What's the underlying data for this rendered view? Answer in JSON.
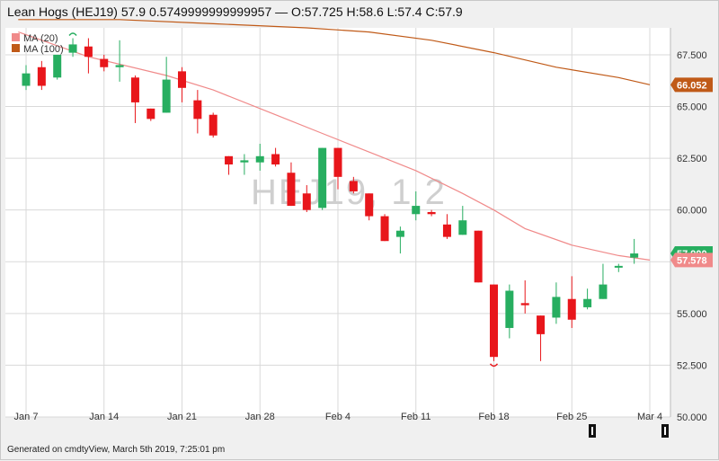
{
  "header": {
    "name": "Lean Hogs (HEJ19)",
    "last": "57.9",
    "change": "0.5749999999999957",
    "dash": "—",
    "ohlc": "O:57.725 H:58.6 L:57.4 C:57.9"
  },
  "footer": "Generated on cmdtyView, March 5th 2019, 7:25:01 pm",
  "watermark": "HEJ19, 1 2",
  "colors": {
    "up": "#27ae60",
    "down": "#e8161b",
    "ma20": "#f08a8a",
    "ma100": "#c05a18",
    "grid": "#d9d9d9",
    "plot_bg": "#ffffff"
  },
  "chart_data": {
    "type": "candlestick",
    "ylim": [
      50.0,
      68.8
    ],
    "yticks": [
      50.0,
      52.5,
      55.0,
      57.5,
      60.0,
      62.5,
      65.0,
      67.5
    ],
    "ytick_labels": [
      "50.000",
      "52.500",
      "55.000",
      "57.500",
      "60.000",
      "62.500",
      "65.000",
      "67.500"
    ],
    "xtick_labels": [
      {
        "label": "Jan 7",
        "i": 0
      },
      {
        "label": "Jan 14",
        "i": 5
      },
      {
        "label": "Jan 21",
        "i": 10
      },
      {
        "label": "Jan 28",
        "i": 15
      },
      {
        "label": "Feb 4",
        "i": 20
      },
      {
        "label": "Feb 11",
        "i": 25
      },
      {
        "label": "Feb 18",
        "i": 30
      },
      {
        "label": "Feb 25",
        "i": 35
      },
      {
        "label": "Mar 4",
        "i": 40
      }
    ],
    "candles": [
      {
        "o": 66.0,
        "h": 67.0,
        "l": 65.8,
        "c": 66.6
      },
      {
        "o": 66.9,
        "h": 67.2,
        "l": 65.8,
        "c": 66.0
      },
      {
        "o": 66.4,
        "h": 67.5,
        "l": 66.3,
        "c": 67.5
      },
      {
        "o": 67.6,
        "h": 68.3,
        "l": 67.4,
        "c": 68.0
      },
      {
        "o": 67.9,
        "h": 68.3,
        "l": 66.6,
        "c": 67.4
      },
      {
        "o": 67.3,
        "h": 67.5,
        "l": 66.7,
        "c": 66.9
      },
      {
        "o": 66.9,
        "h": 68.2,
        "l": 66.2,
        "c": 67.0
      },
      {
        "o": 66.4,
        "h": 66.5,
        "l": 64.2,
        "c": 65.2
      },
      {
        "o": 64.9,
        "h": 64.9,
        "l": 64.3,
        "c": 64.4
      },
      {
        "o": 64.7,
        "h": 67.4,
        "l": 64.7,
        "c": 66.3
      },
      {
        "o": 66.7,
        "h": 66.9,
        "l": 65.2,
        "c": 65.9
      },
      {
        "o": 65.3,
        "h": 65.8,
        "l": 63.7,
        "c": 64.4
      },
      {
        "o": 64.6,
        "h": 64.7,
        "l": 63.5,
        "c": 63.6
      },
      {
        "o": 62.6,
        "h": 62.6,
        "l": 61.7,
        "c": 62.2
      },
      {
        "o": 62.3,
        "h": 62.7,
        "l": 61.7,
        "c": 62.4
      },
      {
        "o": 62.3,
        "h": 63.2,
        "l": 61.9,
        "c": 62.6
      },
      {
        "o": 62.7,
        "h": 63.0,
        "l": 62.1,
        "c": 62.2
      },
      {
        "o": 61.8,
        "h": 62.3,
        "l": 60.2,
        "c": 60.2
      },
      {
        "o": 60.8,
        "h": 61.2,
        "l": 59.9,
        "c": 60.0
      },
      {
        "o": 60.1,
        "h": 63.0,
        "l": 60.0,
        "c": 63.0
      },
      {
        "o": 63.0,
        "h": 63.0,
        "l": 61.0,
        "c": 61.6
      },
      {
        "o": 61.4,
        "h": 61.6,
        "l": 60.8,
        "c": 60.9
      },
      {
        "o": 60.8,
        "h": 60.8,
        "l": 59.5,
        "c": 59.7
      },
      {
        "o": 59.7,
        "h": 59.8,
        "l": 58.5,
        "c": 58.5
      },
      {
        "o": 58.7,
        "h": 59.2,
        "l": 57.9,
        "c": 59.0
      },
      {
        "o": 59.8,
        "h": 60.9,
        "l": 59.5,
        "c": 60.2
      },
      {
        "o": 59.9,
        "h": 60.0,
        "l": 59.7,
        "c": 59.8
      },
      {
        "o": 59.3,
        "h": 59.8,
        "l": 58.6,
        "c": 58.7
      },
      {
        "o": 58.8,
        "h": 60.2,
        "l": 58.8,
        "c": 59.5
      },
      {
        "o": 59.0,
        "h": 59.0,
        "l": 56.5,
        "c": 56.5
      },
      {
        "o": 56.4,
        "h": 56.4,
        "l": 52.7,
        "c": 52.9
      },
      {
        "o": 54.3,
        "h": 56.4,
        "l": 53.8,
        "c": 56.1
      },
      {
        "o": 55.5,
        "h": 56.6,
        "l": 55.0,
        "c": 55.4
      },
      {
        "o": 54.9,
        "h": 54.9,
        "l": 52.7,
        "c": 54.0
      },
      {
        "o": 54.8,
        "h": 56.5,
        "l": 54.5,
        "c": 55.8
      },
      {
        "o": 55.7,
        "h": 56.8,
        "l": 54.3,
        "c": 54.7
      },
      {
        "o": 55.3,
        "h": 56.2,
        "l": 55.2,
        "c": 55.7
      },
      {
        "o": 55.7,
        "h": 57.4,
        "l": 55.7,
        "c": 56.4
      },
      {
        "o": 57.3,
        "h": 57.4,
        "l": 57.0,
        "c": 57.3
      },
      {
        "o": 57.7,
        "h": 58.6,
        "l": 57.4,
        "c": 57.9
      }
    ],
    "series": [
      {
        "name": "MA (20)",
        "current_label": "57.578",
        "points": [
          [
            -0.5,
            68.6
          ],
          [
            4,
            67.4
          ],
          [
            9,
            66.5
          ],
          [
            12,
            65.8
          ],
          [
            16,
            64.6
          ],
          [
            19,
            63.7
          ],
          [
            21,
            63.1
          ],
          [
            23,
            62.5
          ],
          [
            25,
            61.9
          ],
          [
            28,
            60.8
          ],
          [
            30,
            60.0
          ],
          [
            32,
            59.1
          ],
          [
            35,
            58.3
          ],
          [
            38,
            57.8
          ],
          [
            40,
            57.58
          ]
        ]
      },
      {
        "name": "MA (100)",
        "current_label": "66.052",
        "points": [
          [
            -0.5,
            69.2
          ],
          [
            6,
            69.2
          ],
          [
            12,
            69.0
          ],
          [
            18,
            68.8
          ],
          [
            22,
            68.6
          ],
          [
            26,
            68.2
          ],
          [
            30,
            67.6
          ],
          [
            34,
            66.9
          ],
          [
            38,
            66.4
          ],
          [
            40,
            66.05
          ]
        ]
      }
    ],
    "last_price_label": "57.900",
    "annotations": [
      {
        "type": "swing-high",
        "i": 3
      },
      {
        "type": "swing-low",
        "i": 30
      }
    ]
  }
}
